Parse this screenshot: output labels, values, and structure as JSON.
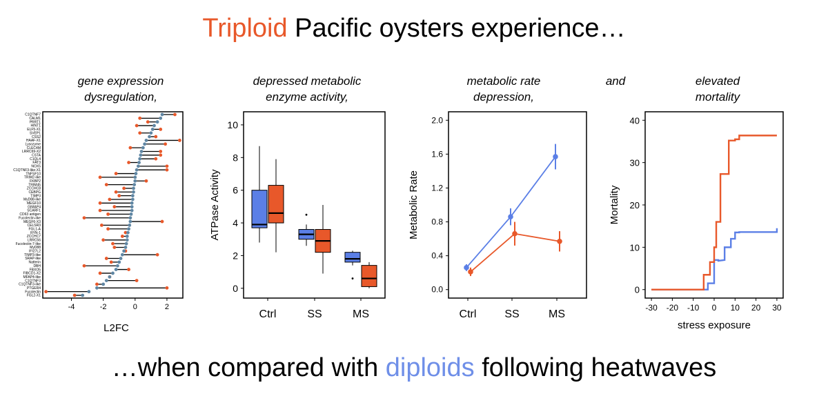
{
  "headline": {
    "part1_highlight": "Triploid",
    "part1_rest": " Pacific oysters experience…",
    "part2_pre": "…when compared with ",
    "part2_highlight": "diploids",
    "part2_post": " following heatwaves"
  },
  "panel_titles": {
    "p1_line1": "gene expression",
    "p1_line2": "dysregulation,",
    "p2_line1": "depressed metabolic",
    "p2_line2": "enzyme activity,",
    "p3_line1": "metabolic rate",
    "p3_line2": "depression,",
    "and": "and",
    "p4_line1": "elevated",
    "p4_line2": "mortality"
  },
  "colors": {
    "triploid": "#E8582A",
    "diploid": "#5B7FE6",
    "dumbbell_diploid": "#5F86A3",
    "frame": "#000000"
  },
  "chart_data": [
    {
      "type": "dumbbell",
      "xlabel": "L2FC",
      "ylabel": "",
      "xlim": [
        -5.8,
        3.0
      ],
      "xticks": [
        -4,
        -2,
        0,
        2
      ],
      "genes": [
        "C1QTNF7",
        "CALM1",
        "PRRT1",
        "HINT1",
        "ELF5-X1",
        "SVEP1",
        "CSS2",
        "HAAF-X1",
        "Lysozyme",
        "CLEC4M",
        "LRRC69-X2",
        "CSTA",
        "C1QL4",
        "FAT3",
        "NOX5",
        "C1QTNF3-like-X1",
        "TNFSF10",
        "TRIM2-like",
        "FKBP2",
        "TRIM45",
        "ZCCHC8",
        "CEBPG",
        "TIMP3",
        "MyD88-like",
        "MEGF10",
        "GIMAP4",
        "SCARF1",
        "CD63 antigen",
        "Fucolectin-like",
        "MEGF6-X3",
        "CELSR3",
        "FGL1-A",
        "RYN-1",
        "ZCCHC7",
        "LRRC56",
        "Fucolectin-7-like",
        "MyD88",
        "IFI27L2",
        "TIMP3-like",
        "SRAP-like",
        "Natterin",
        "DBH",
        "FBXO5",
        "FIBCD1-X2",
        "MFAP4-like",
        "C1QTNF3",
        "C1QTNF3-like",
        "PTGER4",
        "Fucolectin",
        "FGL2-X1"
      ],
      "series": [
        {
          "name": "",
          "values": [
            1.7,
            1.6,
            1.4,
            1.2,
            1.1,
            1.0,
            0.9,
            0.7,
            0.6,
            0.5,
            0.4,
            0.35,
            0.3,
            0.25,
            0.2,
            0.1,
            0.05,
            0.0,
            0.0,
            -0.05,
            -0.1,
            -0.1,
            -0.15,
            -0.15,
            -0.2,
            -0.2,
            -0.2,
            -0.25,
            -0.3,
            -0.3,
            -0.35,
            -0.4,
            -0.45,
            -0.5,
            -0.5,
            -0.55,
            -0.6,
            -0.7,
            -0.8,
            -0.9,
            -1.0,
            -1.1,
            -1.2,
            -1.4,
            -1.6,
            -1.8,
            -2.0,
            -2.4,
            -2.9,
            -3.3
          ]
        },
        {
          "name": "",
          "values": [
            2.5,
            0.3,
            0.8,
            0.1,
            1.6,
            0.3,
            1.3,
            2.8,
            1.9,
            -0.3,
            1.6,
            1.6,
            1.3,
            -0.4,
            2.0,
            2.0,
            -1.2,
            -2.2,
            0.7,
            -1.8,
            -0.7,
            -1.2,
            -1.0,
            -1.6,
            -2.2,
            -1.3,
            -2.2,
            -1.7,
            -3.2,
            1.7,
            -2.1,
            -1.7,
            -0.6,
            -0.8,
            -2.0,
            -1.4,
            -1.3,
            -0.6,
            1.4,
            -1.8,
            -1.5,
            -3.2,
            -0.4,
            -2.2,
            -1.6,
            0.1,
            -2.4,
            2.0,
            -5.6,
            -3.8
          ]
        }
      ]
    },
    {
      "type": "box",
      "categories": [
        "Ctrl",
        "SS",
        "MS"
      ],
      "ylabel": "ATPase Activity",
      "xlabel": "",
      "ylim": [
        -0.6,
        10.8
      ],
      "yticks": [
        0,
        2,
        4,
        6,
        8,
        10
      ],
      "series": [
        {
          "name": "",
          "boxes": [
            {
              "min": 2.8,
              "q1": 3.7,
              "median": 3.9,
              "q3": 6.0,
              "max": 8.7,
              "outliers": []
            },
            {
              "min": 2.6,
              "q1": 3.0,
              "median": 3.3,
              "q3": 3.6,
              "max": 3.9,
              "outliers": [
                4.5
              ]
            },
            {
              "min": 1.4,
              "q1": 1.6,
              "median": 1.8,
              "q3": 2.2,
              "max": 2.3,
              "outliers": [
                0.6
              ]
            }
          ]
        },
        {
          "name": "",
          "boxes": [
            {
              "min": 2.2,
              "q1": 4.0,
              "median": 4.6,
              "q3": 6.3,
              "max": 7.9,
              "outliers": []
            },
            {
              "min": 0.9,
              "q1": 2.2,
              "median": 2.9,
              "q3": 3.6,
              "max": 5.1,
              "outliers": []
            },
            {
              "min": 0.0,
              "q1": 0.1,
              "median": 0.6,
              "q3": 1.4,
              "max": 1.6,
              "outliers": []
            }
          ]
        }
      ]
    },
    {
      "type": "line",
      "categories": [
        "Ctrl",
        "SS",
        "MS"
      ],
      "ylabel": "Metabolic Rate",
      "xlabel": "",
      "ylim": [
        -0.1,
        2.1
      ],
      "yticks": [
        "0.0",
        "0.4",
        "0.8",
        "1.2",
        "1.6",
        "2.0"
      ],
      "series": [
        {
          "name": "",
          "values": [
            0.26,
            0.86,
            1.57
          ],
          "errors": [
            0.04,
            0.1,
            0.15
          ]
        },
        {
          "name": "",
          "values": [
            0.21,
            0.66,
            0.57
          ],
          "errors": [
            0.05,
            0.14,
            0.12
          ]
        }
      ]
    },
    {
      "type": "line",
      "xlabel": "stress exposure",
      "ylabel": "Mortality",
      "xlim": [
        -33,
        33
      ],
      "ylim": [
        -2,
        42
      ],
      "xticks": [
        -30,
        -20,
        -10,
        0,
        10,
        20,
        30
      ],
      "yticks": [
        0,
        10,
        20,
        30,
        40
      ],
      "series": [
        {
          "name": "",
          "x": [
            -30,
            -3,
            -3,
            0,
            0,
            2,
            2,
            5,
            5,
            8,
            8,
            10,
            10,
            12,
            12,
            30,
            30
          ],
          "y": [
            0,
            0,
            1.5,
            1.5,
            7,
            7,
            6.8,
            7,
            10,
            10,
            12,
            12,
            13.5,
            13.5,
            13.6,
            13.6,
            14.5
          ]
        },
        {
          "name": "",
          "x": [
            -30,
            -5,
            -5,
            -2,
            -2,
            0,
            0,
            1,
            1,
            3,
            3,
            7,
            7,
            10,
            10,
            12,
            12,
            30
          ],
          "y": [
            0,
            0,
            3.5,
            3.5,
            6.5,
            6.5,
            10,
            10,
            16,
            16,
            27.3,
            27.3,
            35.2,
            35.2,
            35.5,
            35.5,
            36.4,
            36.4
          ]
        }
      ]
    }
  ]
}
